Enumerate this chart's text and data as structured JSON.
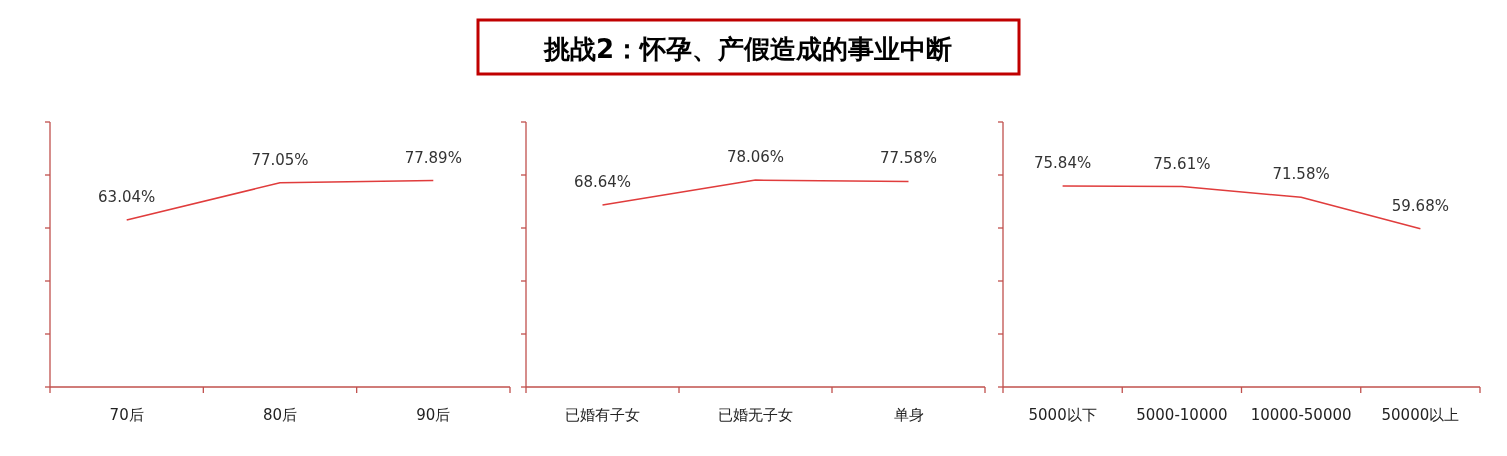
{
  "chart_data": [
    {
      "type": "line",
      "categories": [
        "70后",
        "80后",
        "90后"
      ],
      "series": [
        {
          "color": "#e03c3c",
          "values": [
            63.04,
            77.05,
            77.89
          ],
          "value_labels": [
            "63.04%",
            "77.05%",
            "77.89%"
          ]
        }
      ],
      "ylim": [
        0,
        100
      ],
      "yticks": [
        {
          "value": 0,
          "label": null
        },
        {
          "value": 20,
          "label": null
        },
        {
          "value": 40,
          "label": null
        },
        {
          "value": 60,
          "label": null
        },
        {
          "value": 80,
          "label": null
        },
        {
          "value": 100,
          "label": null
        }
      ],
      "tick_labels": "x"
    },
    {
      "type": "line",
      "title": "挑战2：怀孕、产假造成的事业中断",
      "categories": [
        "已婚有子女",
        "已婚无子女",
        "单身"
      ],
      "series": [
        {
          "color": "#e03c3c",
          "values": [
            68.64,
            78.06,
            77.58
          ],
          "value_labels": [
            "68.64%",
            "78.06%",
            "77.58%"
          ]
        }
      ],
      "ylim": [
        0,
        100
      ],
      "yticks": [
        {
          "value": 0,
          "label": null
        },
        {
          "value": 20,
          "label": null
        },
        {
          "value": 40,
          "label": null
        },
        {
          "value": 60,
          "label": null
        },
        {
          "value": 80,
          "label": null
        },
        {
          "value": 100,
          "label": null
        }
      ],
      "tick_labels": "x"
    },
    {
      "type": "line",
      "categories": [
        "5000以下",
        "5000-10000",
        "10000-50000",
        "50000以上"
      ],
      "series": [
        {
          "color": "#e03c3c",
          "values": [
            75.84,
            75.61,
            71.58,
            59.68
          ],
          "value_labels": [
            "75.84%",
            "75.61%",
            "71.58%",
            "59.68%"
          ]
        }
      ],
      "ylim": [
        0,
        100
      ],
      "yticks": [
        {
          "value": 0,
          "label": null
        },
        {
          "value": 20,
          "label": null
        },
        {
          "value": 40,
          "label": null
        },
        {
          "value": 60,
          "label": null
        },
        {
          "value": 80,
          "label": null
        },
        {
          "value": 100,
          "label": null
        }
      ],
      "tick_labels": "x"
    }
  ]
}
